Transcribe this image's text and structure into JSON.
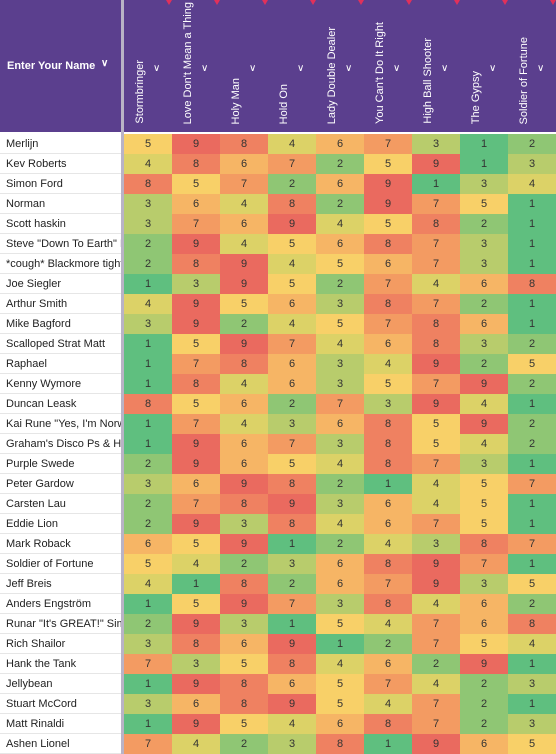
{
  "name_header": "Enter Your Name",
  "columns": [
    "Stormbringer",
    "Love Don't Mean a Thing",
    "Holy Man",
    "Hold On",
    "Lady Double Dealer",
    "You Can't Do It Right",
    "High Ball Shooter",
    "The Gypsy",
    "Soldier of Fortune"
  ],
  "colors": {
    "1": "#5fbf7f",
    "2": "#8fc674",
    "3": "#b8cc6c",
    "4": "#dcd267",
    "5": "#f8d068",
    "6": "#f6b565",
    "7": "#f39b62",
    "8": "#ef8161",
    "9": "#ea6a5f"
  },
  "rows": [
    {
      "name": "Merlijn",
      "v": [
        5,
        9,
        8,
        4,
        6,
        7,
        3,
        1,
        2
      ]
    },
    {
      "name": "Kev Roberts",
      "v": [
        4,
        8,
        6,
        7,
        2,
        5,
        9,
        1,
        3
      ]
    },
    {
      "name": "Simon Ford",
      "v": [
        8,
        5,
        7,
        2,
        6,
        9,
        1,
        3,
        4
      ]
    },
    {
      "name": "Norman",
      "v": [
        3,
        6,
        4,
        8,
        2,
        9,
        7,
        5,
        1
      ]
    },
    {
      "name": "Scott haskin",
      "v": [
        3,
        7,
        6,
        9,
        4,
        5,
        8,
        2,
        1
      ]
    },
    {
      "name": "Steve \"Down To Earth\" K",
      "v": [
        2,
        9,
        4,
        5,
        6,
        8,
        7,
        3,
        1
      ]
    },
    {
      "name": "*cough* Blackmore tight",
      "v": [
        2,
        8,
        9,
        4,
        5,
        6,
        7,
        3,
        1
      ]
    },
    {
      "name": "Joe Siegler",
      "v": [
        1,
        3,
        9,
        5,
        2,
        7,
        4,
        6,
        8
      ]
    },
    {
      "name": "Arthur Smith",
      "v": [
        4,
        9,
        5,
        6,
        3,
        8,
        7,
        2,
        1
      ]
    },
    {
      "name": "Mike Bagford",
      "v": [
        3,
        9,
        2,
        4,
        5,
        7,
        8,
        6,
        1
      ]
    },
    {
      "name": "Scalloped Strat Matt",
      "v": [
        1,
        5,
        9,
        7,
        4,
        6,
        8,
        3,
        2
      ]
    },
    {
      "name": "Raphael",
      "v": [
        1,
        7,
        8,
        6,
        3,
        4,
        9,
        2,
        5
      ]
    },
    {
      "name": "Kenny Wymore",
      "v": [
        1,
        8,
        4,
        6,
        3,
        5,
        7,
        9,
        2
      ]
    },
    {
      "name": "Duncan Leask",
      "v": [
        8,
        5,
        6,
        2,
        7,
        3,
        9,
        4,
        1
      ]
    },
    {
      "name": "Kai Rune  \"Yes, I'm Norw",
      "v": [
        1,
        7,
        4,
        3,
        6,
        8,
        5,
        9,
        2
      ]
    },
    {
      "name": "Graham's Disco Ps & H c",
      "v": [
        1,
        9,
        6,
        7,
        3,
        8,
        5,
        4,
        2
      ]
    },
    {
      "name": "Purple Swede",
      "v": [
        2,
        9,
        6,
        5,
        4,
        8,
        7,
        3,
        1
      ]
    },
    {
      "name": "Peter Gardow",
      "v": [
        3,
        6,
        9,
        8,
        2,
        1,
        4,
        5,
        7
      ]
    },
    {
      "name": "Carsten Lau",
      "v": [
        2,
        7,
        8,
        9,
        3,
        6,
        4,
        5,
        1
      ]
    },
    {
      "name": "Eddie Lion",
      "v": [
        2,
        9,
        3,
        8,
        4,
        6,
        7,
        5,
        1
      ]
    },
    {
      "name": "Mark Roback",
      "v": [
        6,
        5,
        9,
        1,
        2,
        4,
        3,
        8,
        7
      ]
    },
    {
      "name": "Soldier of Fortune",
      "v": [
        5,
        4,
        2,
        3,
        6,
        8,
        9,
        7,
        1
      ]
    },
    {
      "name": "Jeff Breis",
      "v": [
        4,
        1,
        8,
        2,
        6,
        7,
        9,
        3,
        5
      ]
    },
    {
      "name": "Anders Engström",
      "v": [
        1,
        5,
        9,
        7,
        3,
        8,
        4,
        6,
        2
      ]
    },
    {
      "name": "Runar \"It's GREAT!\" Simo",
      "v": [
        2,
        9,
        3,
        1,
        5,
        4,
        7,
        6,
        8
      ]
    },
    {
      "name": "Rich Shailor",
      "v": [
        3,
        8,
        6,
        9,
        1,
        2,
        7,
        5,
        4
      ]
    },
    {
      "name": "Hank the Tank",
      "v": [
        7,
        3,
        5,
        8,
        4,
        6,
        2,
        9,
        1
      ]
    },
    {
      "name": "Jellybean",
      "v": [
        1,
        9,
        8,
        6,
        5,
        7,
        4,
        2,
        3
      ]
    },
    {
      "name": "Stuart McCord",
      "v": [
        3,
        6,
        8,
        9,
        5,
        4,
        7,
        2,
        1
      ]
    },
    {
      "name": "Matt Rinaldi",
      "v": [
        1,
        9,
        5,
        4,
        6,
        8,
        7,
        2,
        3
      ]
    },
    {
      "name": "Ashen Lionel",
      "v": [
        7,
        4,
        2,
        3,
        8,
        1,
        9,
        6,
        5
      ]
    }
  ]
}
